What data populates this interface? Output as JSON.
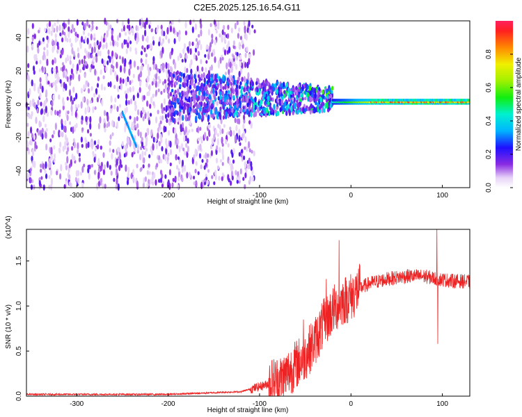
{
  "title": "C2E5.2025.125.16.54.G11",
  "chart_data": [
    {
      "type": "heatmap",
      "name": "spectrogram",
      "xlabel": "Height of straight line (km)",
      "ylabel": "Frequency (Hz)",
      "xlim": [
        -355,
        130
      ],
      "ylim": [
        -50,
        50
      ],
      "xticks": [
        -300,
        -200,
        -100,
        0,
        100
      ],
      "yticks": [
        -40,
        -20,
        0,
        20,
        40
      ],
      "colorbar": {
        "label": "Normalized spectral amplitude",
        "range": [
          0,
          1
        ],
        "ticks": [
          "0.0",
          "0.2",
          "0.4",
          "0.6",
          "0.8"
        ],
        "colormap": "white-violet-blue-cyan-green-yellow-red"
      },
      "features": [
        {
          "x": [
            -355,
            -105
          ],
          "y_center": 0,
          "y_halfwidth": 50,
          "amplitude": [
            0.05,
            0.2
          ],
          "description_shown": "scattered weak noise"
        },
        {
          "x": [
            -200,
            -20
          ],
          "y_center": 5,
          "y_halfwidth": 15,
          "amplitude": [
            0.1,
            0.45
          ]
        },
        {
          "x": [
            -20,
            130
          ],
          "y_center": 1.5,
          "y_halfwidth": 2,
          "amplitude": [
            0.6,
            1.0
          ]
        },
        {
          "x": [
            -250,
            -235
          ],
          "y": [
            -5,
            -25
          ],
          "amplitude": 0.3
        }
      ]
    },
    {
      "type": "line",
      "name": "snr",
      "xlabel": "Height of straight line (km)",
      "ylabel": "SNR (10 * v/v)",
      "y_multiplier": "(x10^4)",
      "xlim": [
        -355,
        130
      ],
      "ylim": [
        0,
        1.85
      ],
      "xticks": [
        -300,
        -200,
        -100,
        0,
        100
      ],
      "yticks": [
        "0.0",
        "0.5",
        "1.0",
        "1.5"
      ],
      "series_color": "#ee2222",
      "profile": [
        {
          "x": -355,
          "y": 0.02
        },
        {
          "x": -200,
          "y": 0.02
        },
        {
          "x": -120,
          "y": 0.05
        },
        {
          "x": -95,
          "y": 0.12
        },
        {
          "x": -75,
          "y": 0.2
        },
        {
          "x": -60,
          "y": 0.35
        },
        {
          "x": -50,
          "y": 0.45
        },
        {
          "x": -40,
          "y": 0.6
        },
        {
          "x": -30,
          "y": 0.8
        },
        {
          "x": -20,
          "y": 0.95
        },
        {
          "x": -10,
          "y": 1.05
        },
        {
          "x": 0,
          "y": 1.1
        },
        {
          "x": 10,
          "y": 1.2
        },
        {
          "x": 20,
          "y": 1.25
        },
        {
          "x": 40,
          "y": 1.3
        },
        {
          "x": 60,
          "y": 1.33
        },
        {
          "x": 80,
          "y": 1.33
        },
        {
          "x": 95,
          "y": 1.3
        },
        {
          "x": 110,
          "y": 1.28
        },
        {
          "x": 130,
          "y": 1.27
        }
      ],
      "peaks": [
        {
          "x": -13,
          "y": 1.73
        },
        {
          "x": 94,
          "y": 1.85
        },
        {
          "x": -27,
          "y": 1.3
        },
        {
          "x": -52,
          "y": 0.85
        }
      ],
      "dips": [
        {
          "x": 95,
          "y": 0.58
        }
      ]
    }
  ]
}
